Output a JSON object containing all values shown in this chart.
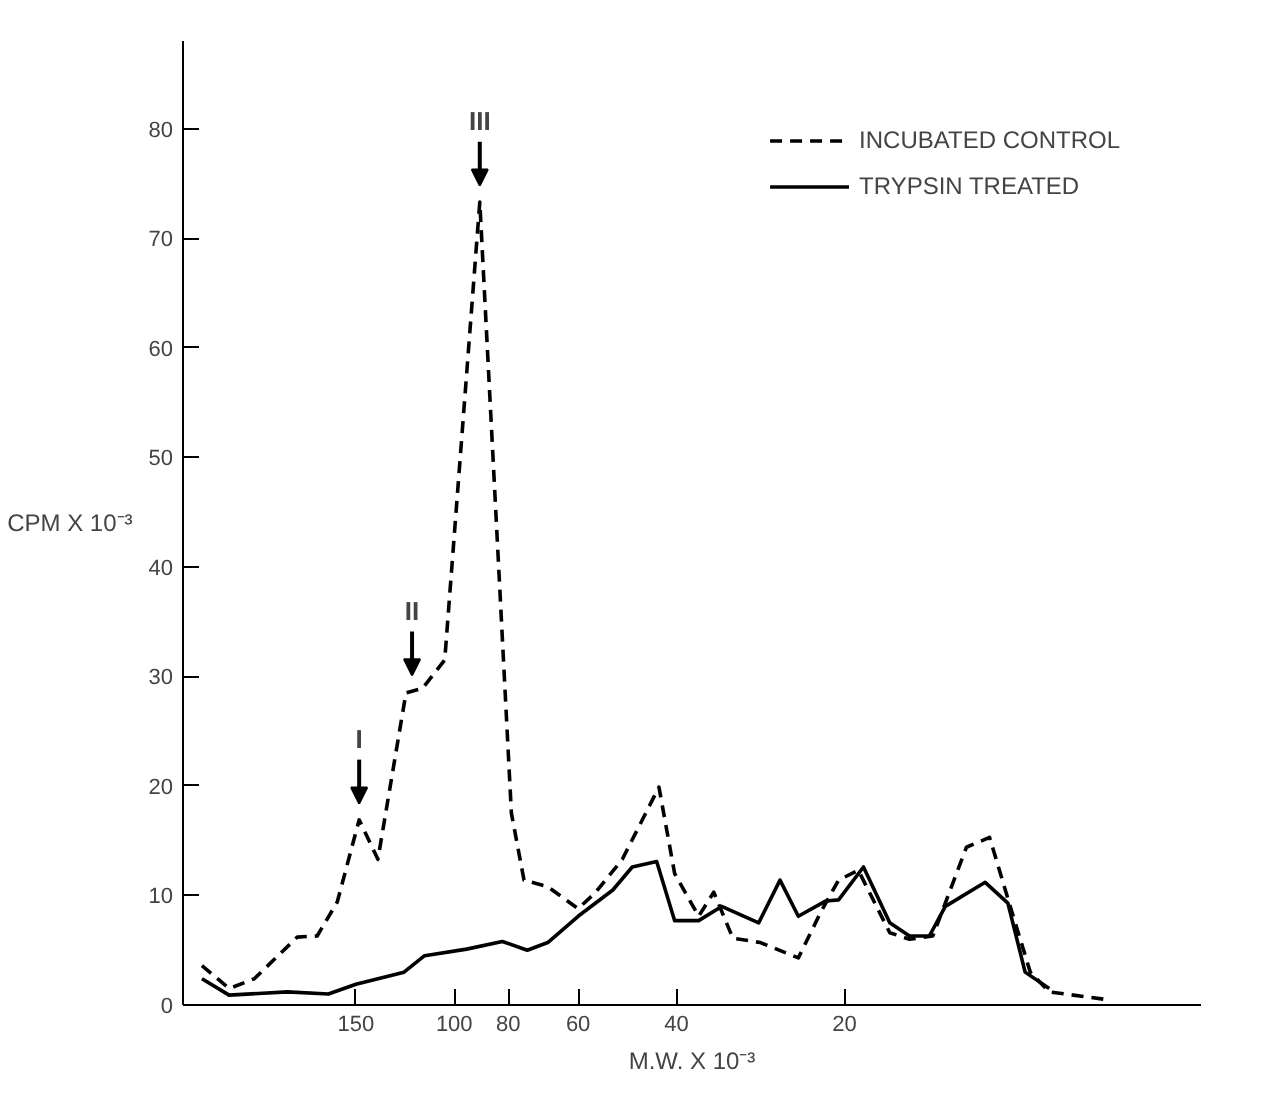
{
  "chart_data": {
    "type": "line",
    "xlabel": "M.W. X 10⁻³",
    "ylabel": "CPM X 10⁻³",
    "xlim": [
      306,
      4.6
    ],
    "ylim": [
      0,
      88
    ],
    "log": "x",
    "xticks": [
      150,
      100,
      80,
      60,
      40,
      20
    ],
    "yticks": [
      0,
      10,
      20,
      30,
      40,
      50,
      60,
      70,
      80
    ],
    "grid": false,
    "legend": "top right",
    "marker": "none",
    "annotations": [
      {
        "text": "I",
        "x": 148,
        "y": 16.9
      },
      {
        "text": "II",
        "x": 119,
        "y": 28.6
      },
      {
        "text": "III",
        "x": 90,
        "y": 73.3
      }
    ],
    "series": [
      {
        "name": "INCUBATED CONTROL",
        "color": "#000000",
        "line_style": "dashed",
        "x": [
          283,
          253,
          228,
          191,
          176,
          162,
          148,
          137,
          122,
          114,
          104,
          90,
          79,
          75,
          68,
          60,
          56,
          50,
          43,
          40.3,
          36.5,
          34.3,
          31.7,
          28.3,
          24.2,
          22.1,
          20.5,
          18.9,
          16.6,
          15.3,
          13.9,
          12.1,
          11.0,
          10.1,
          9.3,
          8.6,
          6.8
        ],
        "values": [
          3.6,
          1.5,
          2.4,
          6.2,
          6.3,
          9.4,
          16.9,
          13.3,
          28.5,
          28.9,
          31.5,
          73.3,
          17.5,
          11.4,
          10.8,
          8.8,
          10.2,
          13.3,
          19.9,
          12.0,
          8.1,
          10.3,
          6.1,
          5.7,
          4.3,
          8.4,
          11.4,
          12.3,
          6.6,
          6.0,
          6.3,
          14.4,
          15.3,
          9.0,
          3.0,
          1.2,
          0.5
        ]
      },
      {
        "name": "TRYPSIN TREATED",
        "color": "#000000",
        "line_style": "solid",
        "x": [
          283,
          253,
          199,
          168,
          150,
          123,
          113,
          95,
          82,
          74,
          68,
          60,
          52,
          48,
          43.4,
          40.3,
          36.5,
          33.2,
          28.5,
          26.1,
          24.2,
          21.6,
          20.5,
          18.5,
          16.6,
          15.3,
          14.1,
          13.2,
          11.2,
          10.2,
          9.5,
          8.6
        ],
        "values": [
          2.4,
          0.9,
          1.2,
          1.0,
          1.9,
          3.0,
          4.5,
          5.1,
          5.8,
          5.0,
          5.7,
          8.1,
          10.5,
          12.6,
          13.1,
          7.7,
          7.7,
          9.0,
          7.5,
          11.4,
          8.1,
          9.5,
          9.6,
          12.6,
          7.5,
          6.3,
          6.3,
          9.0,
          11.2,
          9.3,
          3.0,
          1.5
        ]
      }
    ]
  }
}
